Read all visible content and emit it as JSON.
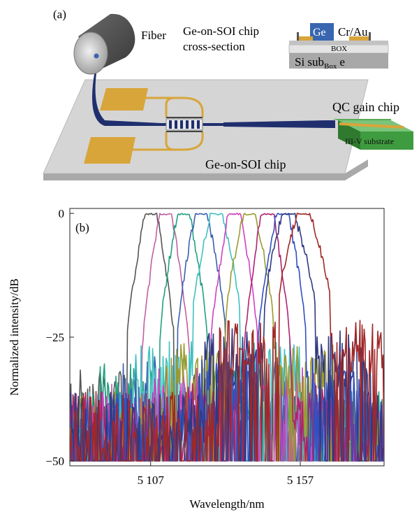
{
  "panel_a": {
    "label": "(a)",
    "fiber_label": "Fiber",
    "cross_section_title_line1": "Ge-on-SOI chip",
    "cross_section_title_line2": "cross-section",
    "ge_label": "Ge",
    "cr_au_label": "Cr/Au",
    "box_label": "BOX",
    "si_sub_main": "Si sub",
    "si_sub_subscript": "Box",
    "si_sub_tail": "e",
    "qc_label": "QC gain chip",
    "iiiv_label": "III-V substrate",
    "chip_label": "Ge-on-SOI chip",
    "colors": {
      "gold": "#d8a53a",
      "waveguide": "#1f2f6e",
      "chip_top": "#d5d5d5",
      "ge_blue": "#3866b0",
      "qc_green": "#3f9b3f"
    }
  },
  "panel_b": {
    "label": "(b)",
    "chart_data": {
      "type": "line",
      "xlabel": "Wavelength/nm",
      "ylabel": "Normalized intensity/dB",
      "xlim": [
        5080,
        5185
      ],
      "ylim": [
        -51,
        1
      ],
      "x_ticks": [
        5107,
        5157
      ],
      "x_tick_labels": [
        "5 107",
        "5 157"
      ],
      "y_ticks": [
        0,
        -25,
        -50
      ],
      "y_tick_labels": [
        "0",
        "−25",
        "−50"
      ],
      "grid": false,
      "legend": "none",
      "floor_db": -50,
      "series": [
        {
          "color": "#555555",
          "peak": 5107,
          "top": [
            5105,
            5109
          ],
          "base": [
            5099,
            5115
          ],
          "wing_db": -27
        },
        {
          "color": "#c060a0",
          "peak": 5112,
          "top": [
            5110,
            5114
          ],
          "base": [
            5104,
            5120
          ],
          "wing_db": -29
        },
        {
          "color": "#20a080",
          "peak": 5118,
          "top": [
            5116,
            5120
          ],
          "base": [
            5110,
            5126
          ],
          "wing_db": -26
        },
        {
          "color": "#3a5fb0",
          "peak": 5124,
          "top": [
            5122,
            5126
          ],
          "base": [
            5116,
            5132
          ],
          "wing_db": -24
        },
        {
          "color": "#40c0c0",
          "peak": 5129,
          "top": [
            5127,
            5131
          ],
          "base": [
            5121,
            5137
          ],
          "wing_db": -21
        },
        {
          "color": "#d040c0",
          "peak": 5135,
          "top": [
            5133,
            5137
          ],
          "base": [
            5127,
            5143
          ],
          "wing_db": -27
        },
        {
          "color": "#9a9a30",
          "peak": 5140,
          "top": [
            5138,
            5142
          ],
          "base": [
            5132,
            5148
          ],
          "wing_db": -22
        },
        {
          "color": "#b02070",
          "peak": 5146,
          "top": [
            5144,
            5148
          ],
          "base": [
            5138,
            5154
          ],
          "wing_db": -30
        },
        {
          "color": "#3050c0",
          "peak": 5151,
          "top": [
            5149,
            5153
          ],
          "base": [
            5143,
            5159
          ],
          "wing_db": -25
        },
        {
          "color": "#303880",
          "peak": 5153,
          "top": [
            5151,
            5155
          ],
          "base": [
            5145,
            5162
          ],
          "wing_db": -19
        },
        {
          "color": "#a02828",
          "peak": 5158,
          "top": [
            5156,
            5160
          ],
          "base": [
            5150,
            5167
          ],
          "wing_db": -17
        }
      ]
    }
  }
}
